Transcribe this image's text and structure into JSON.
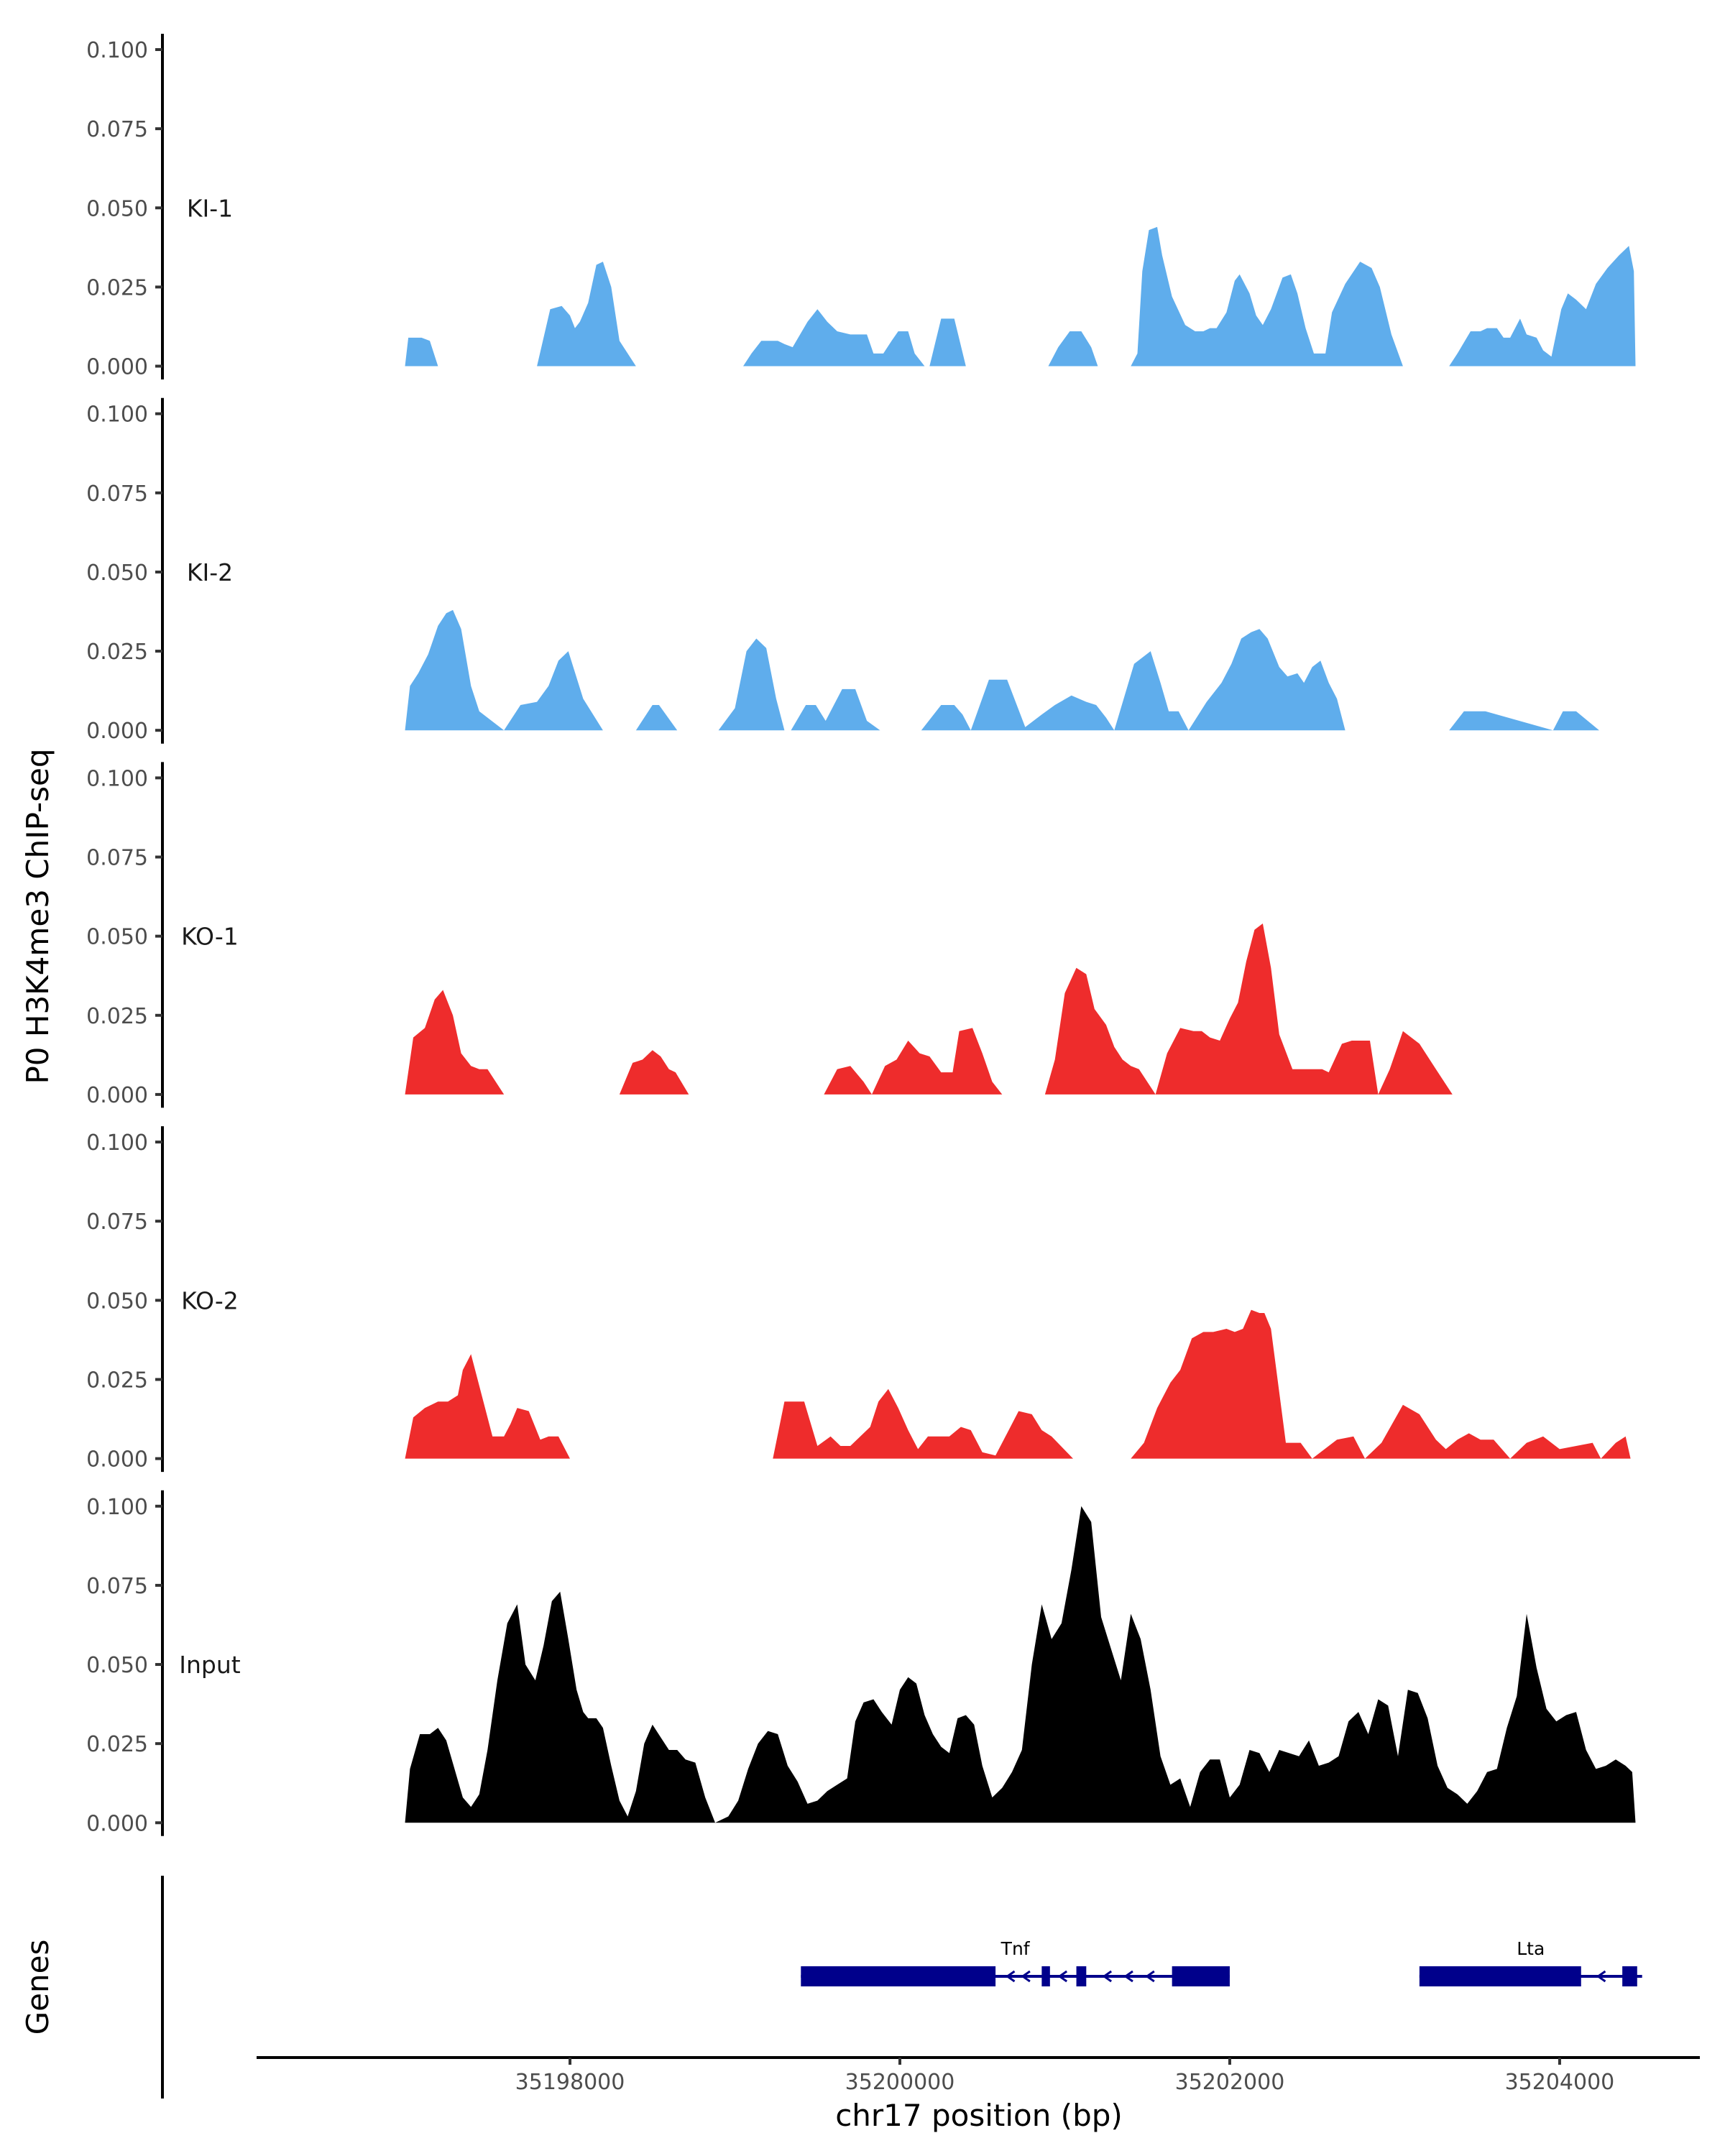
{
  "chart_data": {
    "type": "area",
    "title": "",
    "ylabel": "P0 H3K4me3 ChIP-seq",
    "xlabel": "chr17 position (bp)",
    "genes_label": "Genes",
    "xlim": [
      35196100,
      35204850
    ],
    "ylim": [
      0,
      0.1
    ],
    "yticks": [
      0.0,
      0.025,
      0.05,
      0.075,
      0.1
    ],
    "ytick_labels": [
      "0.000",
      "0.025",
      "0.050",
      "0.075",
      "0.100"
    ],
    "xticks": [
      35198000,
      35200000,
      35202000,
      35204000
    ],
    "xtick_labels": [
      "35198000",
      "35200000",
      "35202000",
      "35204000"
    ],
    "tracks": [
      {
        "name": "KI-1",
        "color": "#5FADEC",
        "x": [
          35197000,
          35197020,
          35197100,
          35197150,
          35197200,
          35197800,
          35197880,
          35197950,
          35198000,
          35198030,
          35198060,
          35198110,
          35198160,
          35198200,
          35198250,
          35198300,
          35198400,
          35199050,
          35199100,
          35199160,
          35199200,
          35199260,
          35199300,
          35199350,
          35199440,
          35199500,
          35199560,
          35199620,
          35199700,
          35199740,
          35199800,
          35199840,
          35199900,
          35199950,
          35199990,
          35200050,
          35200090,
          35200150,
          35200180,
          35200250,
          35200330,
          35200400,
          35200900,
          35200960,
          35201030,
          35201100,
          35201160,
          35201200,
          35201400,
          35201440,
          35201470,
          35201510,
          35201560,
          35201590,
          35201650,
          35201730,
          35201790,
          35201840,
          35201880,
          35201920,
          35201980,
          35202030,
          35202060,
          35202120,
          35202160,
          35202200,
          35202250,
          35202320,
          35202370,
          35202410,
          35202460,
          35202510,
          35202580,
          35202620,
          35202700,
          35202790,
          35202860,
          35202910,
          35202980,
          35203050,
          35203330,
          35203380,
          35203460,
          35203520,
          35203560,
          35203620,
          35203660,
          35203700,
          35203760,
          35203800,
          35203860,
          35203900,
          35203950,
          35204010,
          35204050,
          35204100,
          35204160,
          35204220,
          35204290,
          35204360,
          35204420,
          35204450,
          35204460
        ],
        "y": [
          0,
          0.009,
          0.009,
          0.008,
          0,
          0,
          0.018,
          0.019,
          0.016,
          0.012,
          0.014,
          0.02,
          0.032,
          0.033,
          0.025,
          0.008,
          0,
          0,
          0.004,
          0.008,
          0.008,
          0.008,
          0.007,
          0.006,
          0.014,
          0.018,
          0.014,
          0.011,
          0.01,
          0.01,
          0.01,
          0.004,
          0.004,
          0.008,
          0.011,
          0.011,
          0.004,
          0,
          0,
          0.015,
          0.015,
          0,
          0,
          0.006,
          0.011,
          0.011,
          0.006,
          0,
          0,
          0.004,
          0.03,
          0.043,
          0.044,
          0.035,
          0.022,
          0.013,
          0.011,
          0.011,
          0.012,
          0.012,
          0.017,
          0.027,
          0.029,
          0.023,
          0.016,
          0.013,
          0.018,
          0.028,
          0.029,
          0.023,
          0.012,
          0.004,
          0.004,
          0.017,
          0.026,
          0.033,
          0.031,
          0.025,
          0.01,
          0,
          0,
          0.004,
          0.011,
          0.011,
          0.012,
          0.012,
          0.009,
          0.009,
          0.015,
          0.01,
          0.009,
          0.005,
          0.003,
          0.018,
          0.023,
          0.021,
          0.018,
          0.026,
          0.031,
          0.035,
          0.038,
          0.03,
          0
        ]
      },
      {
        "name": "KI-2",
        "color": "#5FADEC",
        "x": [
          35197000,
          35197030,
          35197080,
          35197140,
          35197200,
          35197250,
          35197290,
          35197340,
          35197400,
          35197450,
          35197600,
          35197700,
          35197800,
          35197870,
          35197930,
          35197990,
          35198080,
          35198200,
          35198400,
          35198500,
          35198540,
          35198650,
          35198900,
          35199000,
          35199070,
          35199130,
          35199190,
          35199250,
          35199300,
          35199340,
          35199430,
          35199490,
          35199550,
          35199650,
          35199730,
          35199800,
          35199880,
          35200130,
          35200250,
          35200330,
          35200380,
          35200430,
          35200540,
          35200650,
          35200760,
          35200860,
          35200940,
          35201040,
          35201130,
          35201190,
          35201250,
          35201300,
          35201420,
          35201520,
          35201580,
          35201630,
          35201690,
          35201750,
          35201860,
          35201950,
          35202010,
          35202070,
          35202130,
          35202180,
          35202230,
          35202300,
          35202350,
          35202410,
          35202450,
          35202500,
          35202550,
          35202600,
          35202650,
          35202700,
          35202760,
          35202860,
          35203330,
          35203420,
          35203550,
          35203960,
          35204020,
          35204100,
          35204240
        ],
        "y": [
          0,
          0.014,
          0.018,
          0.024,
          0.033,
          0.037,
          0.038,
          0.032,
          0.014,
          0.006,
          0,
          0.008,
          0.009,
          0.014,
          0.022,
          0.025,
          0.01,
          0,
          0,
          0.008,
          0.008,
          0,
          0,
          0.007,
          0.025,
          0.029,
          0.026,
          0.01,
          0,
          0,
          0.008,
          0.008,
          0.003,
          0.013,
          0.013,
          0.003,
          0,
          0,
          0.008,
          0.008,
          0.005,
          0,
          0.016,
          0.016,
          0.001,
          0.005,
          0.008,
          0.011,
          0.009,
          0.008,
          0.004,
          0,
          0.021,
          0.025,
          0.015,
          0.006,
          0.006,
          0,
          0.009,
          0.015,
          0.021,
          0.029,
          0.031,
          0.032,
          0.029,
          0.02,
          0.017,
          0.018,
          0.015,
          0.02,
          0.022,
          0.015,
          0.01,
          0,
          0,
          0,
          0,
          0.006,
          0.006,
          0,
          0.006,
          0.006,
          0
        ]
      },
      {
        "name": "KO-1",
        "color": "#EE2C2C",
        "x": [
          35197000,
          35197050,
          35197120,
          35197180,
          35197230,
          35197290,
          35197340,
          35197400,
          35197450,
          35197500,
          35197600,
          35198300,
          35198380,
          35198440,
          35198500,
          35198550,
          35198600,
          35198640,
          35198720,
          35199540,
          35199620,
          35199700,
          35199780,
          35199830,
          35199910,
          35199980,
          35200050,
          35200120,
          35200180,
          35200250,
          35200320,
          35200360,
          35200440,
          35200500,
          35200560,
          35200620,
          35200880,
          35200940,
          35201000,
          35201070,
          35201130,
          35201180,
          35201250,
          35201300,
          35201350,
          35201400,
          35201450,
          35201550,
          35201620,
          35201700,
          35201780,
          35201830,
          35201880,
          35201940,
          35202000,
          35202050,
          35202100,
          35202150,
          35202200,
          35202250,
          35202300,
          35202380,
          35202440,
          35202560,
          35202600,
          35202680,
          35202740,
          35202850,
          35202900,
          35202970,
          35203050,
          35203150,
          35203250,
          35203350
        ],
        "y": [
          0,
          0.018,
          0.021,
          0.03,
          0.033,
          0.025,
          0.013,
          0.009,
          0.008,
          0.008,
          0,
          0,
          0.01,
          0.011,
          0.014,
          0.012,
          0.008,
          0.007,
          0,
          0,
          0.008,
          0.009,
          0.004,
          0,
          0.009,
          0.011,
          0.017,
          0.013,
          0.012,
          0.007,
          0.007,
          0.02,
          0.021,
          0.013,
          0.004,
          0,
          0,
          0.011,
          0.032,
          0.04,
          0.038,
          0.027,
          0.022,
          0.015,
          0.011,
          0.009,
          0.008,
          0,
          0.013,
          0.021,
          0.02,
          0.02,
          0.018,
          0.017,
          0.024,
          0.029,
          0.042,
          0.052,
          0.054,
          0.04,
          0.019,
          0.008,
          0.008,
          0.008,
          0.007,
          0.016,
          0.017,
          0.017,
          0,
          0.008,
          0.02,
          0.016,
          0.008,
          0
        ]
      },
      {
        "name": "KO-2",
        "color": "#EE2C2C",
        "x": [
          35197000,
          35197050,
          35197120,
          35197200,
          35197260,
          35197320,
          35197350,
          35197400,
          35197450,
          35197530,
          35197600,
          35197640,
          35197680,
          35197750,
          35197820,
          35197870,
          35197930,
          35198000,
          35198200,
          35199230,
          35199300,
          35199420,
          35199500,
          35199580,
          35199640,
          35199700,
          35199760,
          35199820,
          35199870,
          35199930,
          35199990,
          35200050,
          35200110,
          35200170,
          35200230,
          35200300,
          35200370,
          35200430,
          35200500,
          35200580,
          35200650,
          35200720,
          35200800,
          35200860,
          35200920,
          35201050,
          35201400,
          35201480,
          35201560,
          35201640,
          35201700,
          35201770,
          35201840,
          35201900,
          35201980,
          35202030,
          35202080,
          35202130,
          35202180,
          35202210,
          35202250,
          35202290,
          35202340,
          35202430,
          35202500,
          35202650,
          35202750,
          35202820,
          35202920,
          35203050,
          35203150,
          35203250,
          35203310,
          35203380,
          35203450,
          35203520,
          35203600,
          35203700,
          35203800,
          35203900,
          35204000,
          35204100,
          35204200,
          35204250,
          35204340,
          35204400,
          35204430
        ],
        "y": [
          0,
          0.013,
          0.016,
          0.018,
          0.018,
          0.02,
          0.028,
          0.033,
          0.023,
          0.007,
          0.007,
          0.011,
          0.016,
          0.015,
          0.006,
          0.007,
          0.007,
          0,
          0,
          0,
          0.018,
          0.018,
          0.004,
          0.007,
          0.004,
          0.004,
          0.007,
          0.01,
          0.018,
          0.022,
          0.016,
          0.009,
          0.003,
          0.007,
          0.007,
          0.007,
          0.01,
          0.009,
          0.002,
          0.001,
          0.008,
          0.015,
          0.014,
          0.009,
          0.007,
          0,
          0,
          0.005,
          0.016,
          0.024,
          0.028,
          0.038,
          0.04,
          0.04,
          0.041,
          0.04,
          0.041,
          0.047,
          0.046,
          0.046,
          0.041,
          0.025,
          0.005,
          0.005,
          0,
          0.006,
          0.007,
          0,
          0.005,
          0.017,
          0.014,
          0.006,
          0.003,
          0.006,
          0.008,
          0.006,
          0.006,
          0,
          0.005,
          0.007,
          0.003,
          0.004,
          0.005,
          0,
          0.005,
          0.007,
          0
        ]
      },
      {
        "name": "Input",
        "color": "#000000",
        "x": [
          35197000,
          35197030,
          35197090,
          35197150,
          35197200,
          35197250,
          35197300,
          35197350,
          35197400,
          35197450,
          35197500,
          35197560,
          35197620,
          35197680,
          35197730,
          35197790,
          35197840,
          35197890,
          35197940,
          35197990,
          35198040,
          35198080,
          35198110,
          35198160,
          35198200,
          35198250,
          35198300,
          35198350,
          35198400,
          35198450,
          35198500,
          35198550,
          35198600,
          35198650,
          35198700,
          35198760,
          35198820,
          35198880,
          35198960,
          35199020,
          35199080,
          35199140,
          35199200,
          35199260,
          35199320,
          35199380,
          35199440,
          35199500,
          35199560,
          35199620,
          35199680,
          35199730,
          35199780,
          35199840,
          35199890,
          35199950,
          35200000,
          35200050,
          35200100,
          35200150,
          35200200,
          35200250,
          35200300,
          35200350,
          35200400,
          35200450,
          35200500,
          35200560,
          35200620,
          35200680,
          35200740,
          35200800,
          35200860,
          35200920,
          35200980,
          35201040,
          35201100,
          35201160,
          35201220,
          35201280,
          35201340,
          35201400,
          35201460,
          35201520,
          35201580,
          35201640,
          35201700,
          35201760,
          35201820,
          35201880,
          35201940,
          35202000,
          35202060,
          35202120,
          35202180,
          35202240,
          35202300,
          35202360,
          35202420,
          35202480,
          35202540,
          35202600,
          35202660,
          35202720,
          35202780,
          35202840,
          35202900,
          35202960,
          35203020,
          35203080,
          35203140,
          35203200,
          35203260,
          35203320,
          35203380,
          35203440,
          35203500,
          35203560,
          35203620,
          35203680,
          35203740,
          35203800,
          35203860,
          35203920,
          35203980,
          35204040,
          35204100,
          35204160,
          35204220,
          35204280,
          35204340,
          35204400,
          35204440,
          35204460
        ],
        "y": [
          0,
          0.017,
          0.028,
          0.028,
          0.03,
          0.026,
          0.017,
          0.008,
          0.005,
          0.009,
          0.023,
          0.045,
          0.063,
          0.069,
          0.05,
          0.045,
          0.056,
          0.07,
          0.073,
          0.058,
          0.042,
          0.035,
          0.033,
          0.033,
          0.03,
          0.018,
          0.007,
          0.002,
          0.01,
          0.025,
          0.031,
          0.027,
          0.023,
          0.023,
          0.02,
          0.019,
          0.008,
          0,
          0.002,
          0.007,
          0.017,
          0.025,
          0.029,
          0.028,
          0.018,
          0.013,
          0.006,
          0.007,
          0.01,
          0.012,
          0.014,
          0.032,
          0.038,
          0.039,
          0.035,
          0.031,
          0.042,
          0.046,
          0.044,
          0.034,
          0.028,
          0.024,
          0.022,
          0.033,
          0.034,
          0.031,
          0.018,
          0.008,
          0.011,
          0.016,
          0.023,
          0.05,
          0.069,
          0.058,
          0.063,
          0.08,
          0.1,
          0.095,
          0.065,
          0.055,
          0.045,
          0.066,
          0.058,
          0.042,
          0.021,
          0.012,
          0.014,
          0.005,
          0.016,
          0.02,
          0.02,
          0.008,
          0.012,
          0.023,
          0.022,
          0.016,
          0.023,
          0.022,
          0.021,
          0.026,
          0.018,
          0.019,
          0.021,
          0.032,
          0.035,
          0.028,
          0.039,
          0.037,
          0.021,
          0.042,
          0.041,
          0.033,
          0.018,
          0.011,
          0.009,
          0.006,
          0.01,
          0.016,
          0.017,
          0.03,
          0.04,
          0.066,
          0.049,
          0.036,
          0.032,
          0.034,
          0.035,
          0.023,
          0.017,
          0.018,
          0.02,
          0.018,
          0.016,
          0
        ]
      }
    ],
    "genes": [
      {
        "name": "Tnf",
        "color": "#00008B",
        "start": 35199400,
        "end": 35202000,
        "strand": "-",
        "exons": [
          [
            35199400,
            35200580
          ],
          [
            35200860,
            35200910
          ],
          [
            35201070,
            35201130
          ],
          [
            35201650,
            35202000
          ]
        ]
      },
      {
        "name": "Lta",
        "color": "#00008B",
        "start": 35203150,
        "end": 35204500,
        "strand": "-",
        "exons": [
          [
            35203150,
            35204130
          ],
          [
            35204380,
            35204470
          ]
        ]
      }
    ]
  }
}
